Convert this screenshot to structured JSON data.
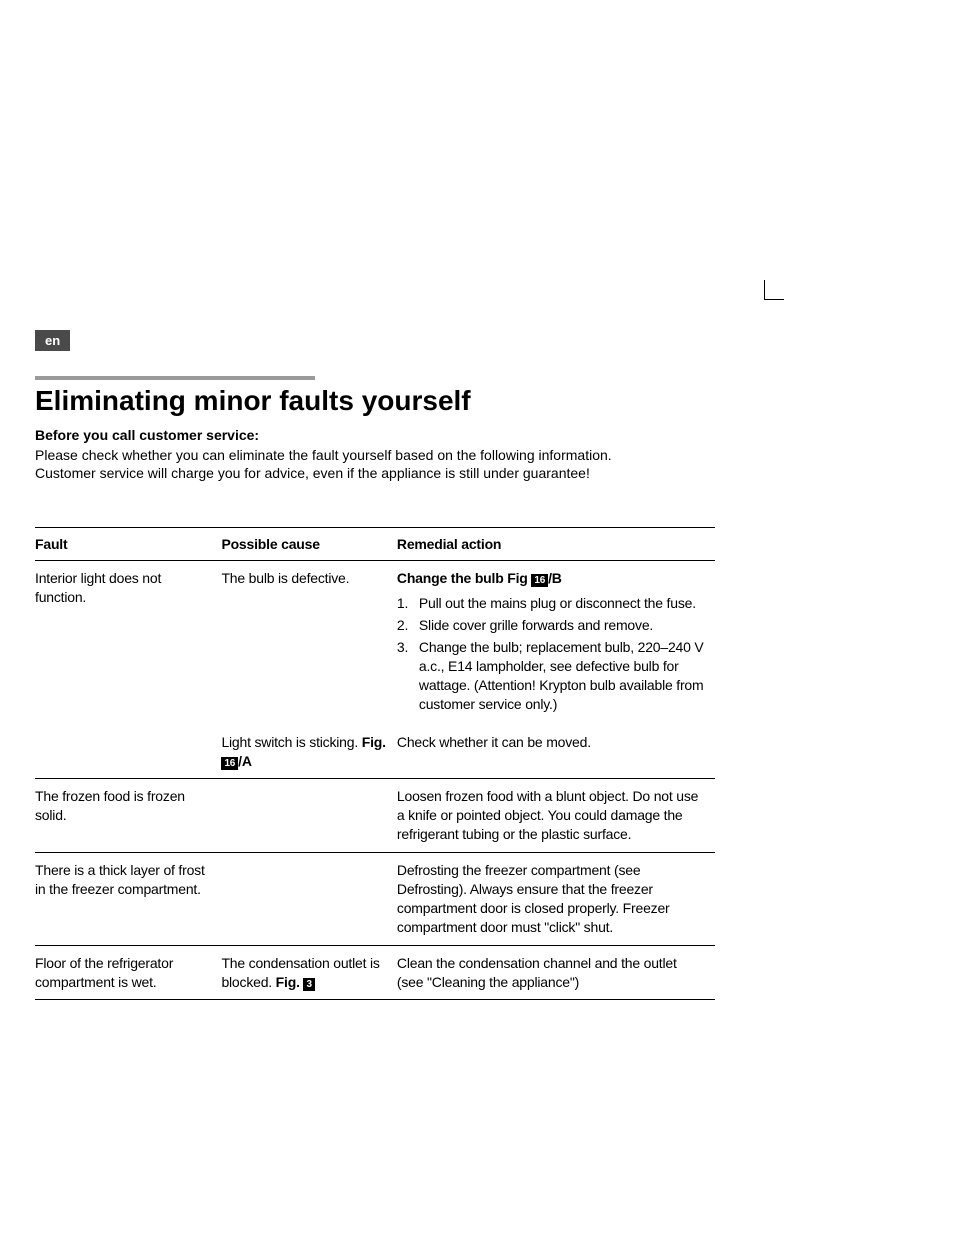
{
  "lang_badge": "en",
  "heading": "Eliminating minor faults yourself",
  "intro": {
    "bold": "Before you call customer service:",
    "line1": "Please check whether you can eliminate the fault yourself based on the following information.",
    "line2": "Customer service will charge you for advice, even if the appliance is still under guarantee!"
  },
  "table": {
    "headers": {
      "fault": "Fault",
      "cause": "Possible cause",
      "action": "Remedial action"
    },
    "rows": [
      {
        "fault": "Interior light does not function.",
        "cause": "The bulb is defective.",
        "action_title_pre": "Change the bulb Fig ",
        "action_title_badge": "16",
        "action_title_post": "/B",
        "steps": [
          "Pull out the mains plug or disconnect the fuse.",
          "Slide cover grille forwards and remove.",
          "Change the bulb; replacement bulb, 220–240 V a.c., E14 lampholder, see defective bulb for wattage. (Attention! Krypton bulb available from customer service only.)"
        ]
      },
      {
        "fault": "",
        "cause_pre": "Light switch is sticking. ",
        "cause_bold_pre": "Fig. ",
        "cause_badge": "16",
        "cause_bold_post": "/A",
        "action": "Check whether it can be moved."
      },
      {
        "fault": "The frozen food is frozen solid.",
        "cause": "",
        "action": "Loosen frozen food with a blunt object. Do not use a knife or pointed object. You could damage the refrigerant tubing or the plastic surface."
      },
      {
        "fault": "There is a thick layer of frost in the freezer compartment.",
        "cause": "",
        "action": "Defrosting the freezer compartment (see Defrosting). Always ensure that the freezer compartment door is closed properly. Freezer compartment door must \"click\" shut."
      },
      {
        "fault": "Floor of the refrigerator compartment is wet.",
        "cause_pre": "The condensation outlet is blocked. ",
        "cause_bold_pre": "Fig. ",
        "cause_badge": "3",
        "cause_bold_post": "",
        "action": "Clean the condensation channel and the outlet (see \"Cleaning the appliance\")"
      }
    ]
  },
  "colors": {
    "badge_bg": "#4a4a4a",
    "bar_bg": "#9a9a9a",
    "text": "#000000",
    "background": "#ffffff"
  }
}
